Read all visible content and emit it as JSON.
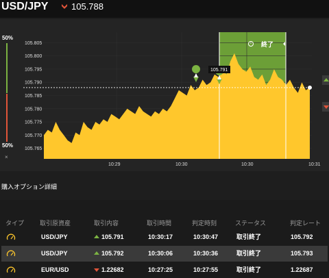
{
  "header": {
    "pair": "USD/JPY",
    "rate": "105.788",
    "direction_icon": "down-arrow-icon"
  },
  "side": {
    "top_pct": "50%",
    "bottom_pct": "50%",
    "close": "×"
  },
  "chart": {
    "colors": {
      "area": "#ffc72c",
      "expiry_zone": "#6c9f37",
      "marker": "#7cb342",
      "line": "#ffffff"
    },
    "y_ticks": [
      "105.805",
      "105.800",
      "105.795",
      "105.790",
      "105.785",
      "105.780",
      "105.775",
      "105.770",
      "105.765"
    ],
    "x_ticks": [
      "10:29",
      "10:30",
      "10:30",
      "10:31"
    ],
    "tooltip": "105.791",
    "zone_label": "終了",
    "zone_icon": "timer-icon"
  },
  "chart_data": {
    "type": "area",
    "ylim": [
      105.761,
      105.809
    ],
    "values": [
      105.77,
      105.772,
      105.771,
      105.775,
      105.772,
      105.77,
      105.768,
      105.767,
      105.771,
      105.77,
      105.775,
      105.773,
      105.772,
      105.775,
      105.774,
      105.776,
      105.775,
      105.778,
      105.777,
      105.776,
      105.778,
      105.78,
      105.779,
      105.778,
      105.781,
      105.779,
      105.778,
      105.777,
      105.779,
      105.778,
      105.78,
      105.779,
      105.781,
      105.784,
      105.787,
      105.786,
      105.785,
      105.789,
      105.787,
      105.788,
      105.791,
      105.789,
      105.79,
      105.793,
      105.792,
      105.795,
      105.793,
      105.798,
      105.801,
      105.797,
      105.795,
      105.794,
      105.796,
      105.792,
      105.791,
      105.793,
      105.789,
      105.791,
      105.795,
      105.792,
      105.791,
      105.789,
      105.791,
      105.788,
      105.786,
      105.79,
      105.787,
      105.788
    ],
    "x_ticks": [
      "10:29",
      "10:30",
      "10:30",
      "10:31"
    ],
    "current_rate": 105.788
  },
  "section": {
    "title": "購入オプション詳細"
  },
  "table": {
    "headers": [
      "タイプ",
      "取引原資産",
      "取引内容",
      "取引時間",
      "判定時刻",
      "ステータス",
      "判定レート"
    ],
    "rows": [
      {
        "asset": "USD/JPY",
        "dir": "up",
        "rate": "105.791",
        "time": "10:30:17",
        "judge": "10:30:47",
        "status": "取引終了",
        "judge_rate": "105.792"
      },
      {
        "asset": "USD/JPY",
        "dir": "up",
        "rate": "105.792",
        "time": "10:30:06",
        "judge": "10:30:36",
        "status": "取引終了",
        "judge_rate": "105.793"
      },
      {
        "asset": "EUR/USD",
        "dir": "down",
        "rate": "1.22682",
        "time": "10:27:25",
        "judge": "10:27:55",
        "status": "取引終了",
        "judge_rate": "1.22687"
      }
    ]
  }
}
